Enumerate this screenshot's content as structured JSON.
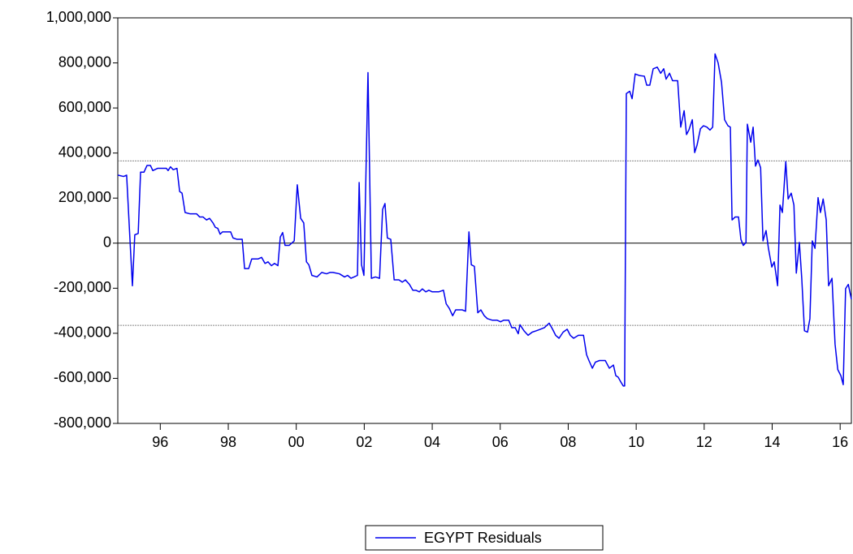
{
  "chart_data": {
    "type": "line",
    "x": [
      1994.75,
      1994.92,
      1995.01,
      1995.11,
      1995.18,
      1995.25,
      1995.35,
      1995.42,
      1995.52,
      1995.61,
      1995.71,
      1995.78,
      1995.92,
      1996.18,
      1996.23,
      1996.3,
      1996.38,
      1996.49,
      1996.57,
      1996.64,
      1996.73,
      1996.88,
      1997.07,
      1997.16,
      1997.26,
      1997.36,
      1997.45,
      1997.55,
      1997.62,
      1997.69,
      1997.76,
      1997.83,
      1997.9,
      1998.07,
      1998.14,
      1998.26,
      1998.41,
      1998.48,
      1998.6,
      1998.69,
      1998.88,
      1998.98,
      1999.08,
      1999.17,
      1999.27,
      1999.36,
      1999.46,
      1999.53,
      1999.6,
      1999.67,
      1999.79,
      1999.94,
      2000.03,
      2000.13,
      2000.22,
      2000.3,
      2000.37,
      2000.46,
      2000.61,
      2000.75,
      2000.89,
      2000.99,
      2001.08,
      2001.27,
      2001.42,
      2001.51,
      2001.61,
      2001.7,
      2001.8,
      2001.85,
      2001.92,
      2001.99,
      2002.11,
      2002.21,
      2002.33,
      2002.45,
      2002.54,
      2002.61,
      2002.68,
      2002.78,
      2002.88,
      2003.02,
      2003.12,
      2003.21,
      2003.33,
      2003.43,
      2003.52,
      2003.62,
      2003.71,
      2003.81,
      2003.9,
      2004.0,
      2004.19,
      2004.33,
      2004.41,
      2004.5,
      2004.6,
      2004.69,
      2004.88,
      2004.98,
      2005.08,
      2005.15,
      2005.24,
      2005.34,
      2005.43,
      2005.53,
      2005.62,
      2005.77,
      2005.91,
      2006.01,
      2006.1,
      2006.25,
      2006.34,
      2006.44,
      2006.53,
      2006.58,
      2006.7,
      2006.82,
      2006.94,
      2007.06,
      2007.18,
      2007.3,
      2007.44,
      2007.54,
      2007.63,
      2007.73,
      2007.85,
      2007.97,
      2008.06,
      2008.16,
      2008.3,
      2008.45,
      2008.54,
      2008.61,
      2008.71,
      2008.8,
      2008.92,
      2009.09,
      2009.21,
      2009.33,
      2009.4,
      2009.47,
      2009.54,
      2009.62,
      2009.66,
      2009.71,
      2009.81,
      2009.88,
      2009.97,
      2010.09,
      2010.24,
      2010.31,
      2010.4,
      2010.5,
      2010.62,
      2010.72,
      2010.81,
      2010.88,
      2010.98,
      2011.07,
      2011.22,
      2011.31,
      2011.41,
      2011.48,
      2011.55,
      2011.65,
      2011.72,
      2011.79,
      2011.89,
      2011.98,
      2012.08,
      2012.17,
      2012.25,
      2012.32,
      2012.41,
      2012.51,
      2012.6,
      2012.7,
      2012.77,
      2012.82,
      2012.91,
      2013.01,
      2013.08,
      2013.15,
      2013.23,
      2013.27,
      2013.37,
      2013.44,
      2013.51,
      2013.58,
      2013.66,
      2013.73,
      2013.82,
      2013.89,
      2013.99,
      2014.06,
      2014.16,
      2014.23,
      2014.3,
      2014.4,
      2014.47,
      2014.56,
      2014.64,
      2014.71,
      2014.8,
      2014.87,
      2014.95,
      2015.04,
      2015.11,
      2015.18,
      2015.26,
      2015.35,
      2015.42,
      2015.5,
      2015.59,
      2015.66,
      2015.76,
      2015.85,
      2015.93,
      2016.02,
      2016.09,
      2016.16,
      2016.24,
      2016.33
    ],
    "series": [
      {
        "name": "EGYPT Residuals",
        "color": "#0000ee",
        "values": [
          302000,
          296000,
          302000,
          10000,
          -189000,
          37000,
          43000,
          315000,
          315000,
          345000,
          345000,
          322000,
          332000,
          332000,
          322000,
          339000,
          326000,
          332000,
          229000,
          222000,
          136000,
          130000,
          130000,
          116000,
          116000,
          103000,
          110000,
          90000,
          70000,
          66000,
          40000,
          50000,
          50000,
          50000,
          23000,
          17000,
          17000,
          -113000,
          -113000,
          -70000,
          -70000,
          -63000,
          -90000,
          -83000,
          -100000,
          -90000,
          -100000,
          27000,
          47000,
          -10000,
          -10000,
          10000,
          259000,
          110000,
          90000,
          -83000,
          -96000,
          -143000,
          -150000,
          -130000,
          -136000,
          -130000,
          -130000,
          -136000,
          -150000,
          -143000,
          -156000,
          -150000,
          -143000,
          269000,
          -96000,
          -143000,
          757000,
          -156000,
          -150000,
          -156000,
          150000,
          176000,
          23000,
          17000,
          -163000,
          -163000,
          -173000,
          -163000,
          -183000,
          -209000,
          -209000,
          -216000,
          -203000,
          -216000,
          -209000,
          -216000,
          -216000,
          -209000,
          -269000,
          -289000,
          -322000,
          -296000,
          -296000,
          -302000,
          50000,
          -96000,
          -103000,
          -309000,
          -296000,
          -322000,
          -335000,
          -342000,
          -342000,
          -349000,
          -342000,
          -342000,
          -375000,
          -375000,
          -402000,
          -362000,
          -389000,
          -409000,
          -395000,
          -389000,
          -382000,
          -375000,
          -355000,
          -382000,
          -409000,
          -422000,
          -395000,
          -382000,
          -409000,
          -422000,
          -409000,
          -409000,
          -495000,
          -521000,
          -555000,
          -528000,
          -521000,
          -521000,
          -555000,
          -541000,
          -588000,
          -595000,
          -614000,
          -634000,
          -634000,
          664000,
          674000,
          641000,
          751000,
          744000,
          741000,
          701000,
          701000,
          774000,
          781000,
          754000,
          774000,
          728000,
          754000,
          721000,
          721000,
          515000,
          588000,
          482000,
          502000,
          548000,
          402000,
          435000,
          508000,
          521000,
          515000,
          502000,
          515000,
          840000,
          800000,
          714000,
          548000,
          521000,
          515000,
          103000,
          116000,
          116000,
          17000,
          -10000,
          3000,
          528000,
          448000,
          515000,
          342000,
          369000,
          335000,
          10000,
          56000,
          -23000,
          -106000,
          -83000,
          -189000,
          169000,
          136000,
          362000,
          196000,
          222000,
          169000,
          -133000,
          3000,
          -156000,
          -389000,
          -395000,
          -335000,
          10000,
          -23000,
          202000,
          136000,
          196000,
          103000,
          -189000,
          -156000,
          -448000,
          -561000,
          -588000,
          -628000,
          -202000,
          -183000,
          -249000
        ]
      }
    ],
    "xlim": [
      1994.75,
      2016.33
    ],
    "xticks": [
      {
        "value": 1996,
        "label": "96"
      },
      {
        "value": 1998,
        "label": "98"
      },
      {
        "value": 2000,
        "label": "00"
      },
      {
        "value": 2002,
        "label": "02"
      },
      {
        "value": 2004,
        "label": "04"
      },
      {
        "value": 2006,
        "label": "06"
      },
      {
        "value": 2008,
        "label": "08"
      },
      {
        "value": 2010,
        "label": "10"
      },
      {
        "value": 2012,
        "label": "12"
      },
      {
        "value": 2014,
        "label": "14"
      },
      {
        "value": 2016,
        "label": "16"
      }
    ],
    "ylim": [
      -800000,
      1000000
    ],
    "yticks": [
      {
        "value": -800000,
        "label": "-800,000"
      },
      {
        "value": -600000,
        "label": "-600,000"
      },
      {
        "value": -400000,
        "label": "-400,000"
      },
      {
        "value": -200000,
        "label": "-200,000"
      },
      0,
      {
        "value": 200000,
        "label": "200,000"
      },
      {
        "value": 400000,
        "label": "400,000"
      },
      {
        "value": 600000,
        "label": "600,000"
      },
      {
        "value": 800000,
        "label": "800,000"
      },
      {
        "value": 1000000,
        "label": "1,000,000"
      }
    ],
    "reference_lines": [
      -365000,
      365000
    ],
    "legend": "bottom"
  }
}
